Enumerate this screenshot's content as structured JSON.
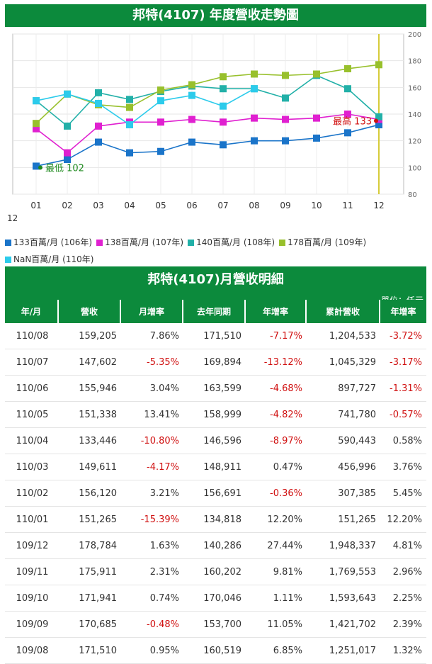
{
  "chart_title": "邦特(4107) 年度營收走勢圖",
  "stray_label": "12",
  "chart_data": {
    "type": "line",
    "categories": [
      "01",
      "02",
      "03",
      "04",
      "05",
      "06",
      "07",
      "08",
      "09",
      "10",
      "11",
      "12"
    ],
    "y_ticks": [
      "80",
      "100",
      "120",
      "140",
      "160",
      "180",
      "200"
    ],
    "ylim": [
      80,
      200
    ],
    "grid": true,
    "legend_position": "bottom-left",
    "series": [
      {
        "name": "133百萬/月 (106年)",
        "color": "#1a74c9",
        "values": [
          101,
          106,
          119,
          111,
          112,
          119,
          117,
          120,
          120,
          122,
          126,
          132
        ]
      },
      {
        "name": "138百萬/月 (107年)",
        "color": "#e020d0",
        "values": [
          129,
          111,
          131,
          134,
          134,
          136,
          134,
          137,
          136,
          137,
          140,
          136
        ]
      },
      {
        "name": "140百萬/月 (108年)",
        "color": "#22b0a8",
        "values": [
          150,
          131,
          156,
          151,
          157,
          161,
          159,
          159,
          152,
          169,
          159,
          138
        ]
      },
      {
        "name": "178百萬/月 (109年)",
        "color": "#98c02c",
        "values": [
          133,
          155,
          147,
          145,
          158,
          162,
          168,
          170,
          169,
          170,
          174,
          177
        ]
      },
      {
        "name": "NaN百萬/月 (110年)",
        "color": "#2ccbeb",
        "values": [
          150,
          155,
          148,
          132,
          150,
          154,
          146,
          159,
          null,
          null,
          null,
          null
        ]
      }
    ],
    "annotations": [
      {
        "text": "最低 102",
        "color": "#1e8a1e"
      },
      {
        "text": "最高 133",
        "color": "#d01010"
      }
    ]
  },
  "table_title": "邦特(4107)月營收明細",
  "unit_label": "單位：仟元",
  "columns": [
    "年/月",
    "營收",
    "月增率",
    "去年同期",
    "年增率",
    "累計營收",
    "年增率"
  ],
  "rows": [
    [
      "110/08",
      "159,205",
      "7.86%",
      "171,510",
      "-7.17%",
      "1,204,533",
      "-3.72%"
    ],
    [
      "110/07",
      "147,602",
      "-5.35%",
      "169,894",
      "-13.12%",
      "1,045,329",
      "-3.17%"
    ],
    [
      "110/06",
      "155,946",
      "3.04%",
      "163,599",
      "-4.68%",
      "897,727",
      "-1.31%"
    ],
    [
      "110/05",
      "151,338",
      "13.41%",
      "158,999",
      "-4.82%",
      "741,780",
      "-0.57%"
    ],
    [
      "110/04",
      "133,446",
      "-10.80%",
      "146,596",
      "-8.97%",
      "590,443",
      "0.58%"
    ],
    [
      "110/03",
      "149,611",
      "-4.17%",
      "148,911",
      "0.47%",
      "456,996",
      "3.76%"
    ],
    [
      "110/02",
      "156,120",
      "3.21%",
      "156,691",
      "-0.36%",
      "307,385",
      "5.45%"
    ],
    [
      "110/01",
      "151,265",
      "-15.39%",
      "134,818",
      "12.20%",
      "151,265",
      "12.20%"
    ],
    [
      "109/12",
      "178,784",
      "1.63%",
      "140,286",
      "27.44%",
      "1,948,337",
      "4.81%"
    ],
    [
      "109/11",
      "175,911",
      "2.31%",
      "160,202",
      "9.81%",
      "1,769,553",
      "2.96%"
    ],
    [
      "109/10",
      "171,941",
      "0.74%",
      "170,046",
      "1.11%",
      "1,593,643",
      "2.25%"
    ],
    [
      "109/09",
      "170,685",
      "-0.48%",
      "153,700",
      "11.05%",
      "1,421,702",
      "2.39%"
    ],
    [
      "109/08",
      "171,510",
      "0.95%",
      "160,519",
      "6.85%",
      "1,251,017",
      "1.32%"
    ]
  ]
}
